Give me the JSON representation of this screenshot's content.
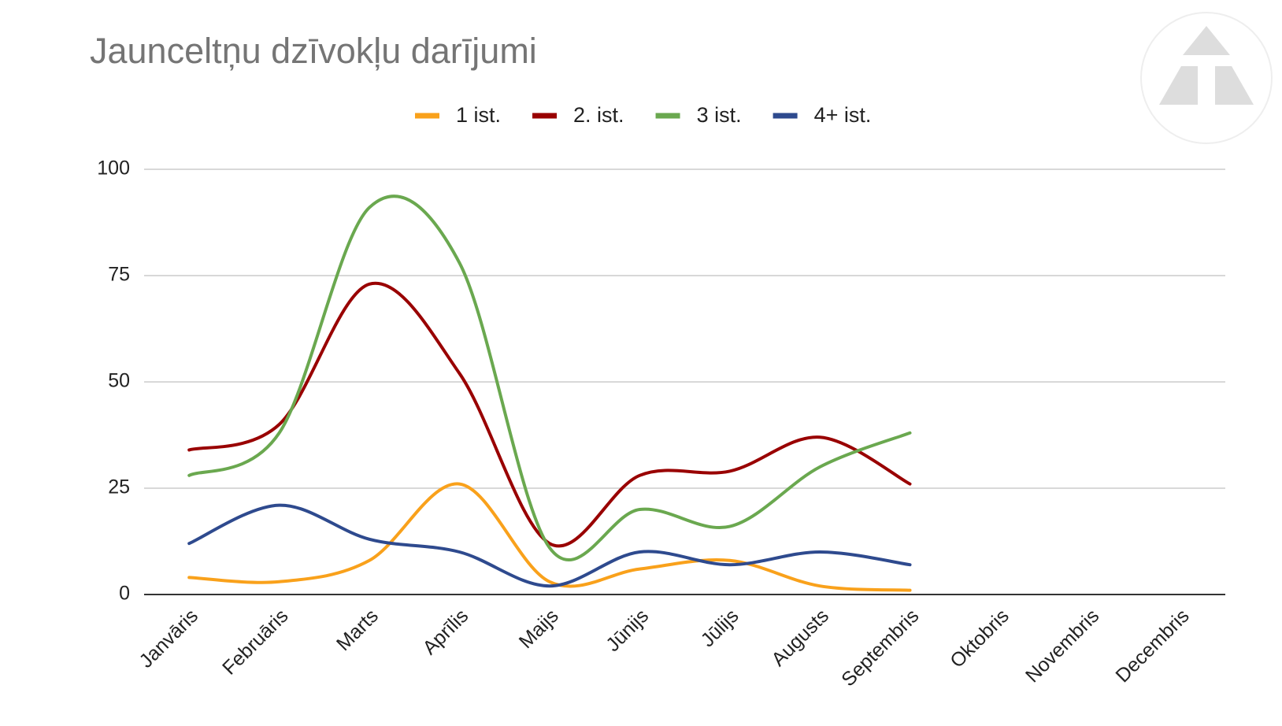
{
  "chart_data": {
    "type": "line",
    "title": "Jaunceltņu dzīvokļu darījumi",
    "categories": [
      "Janvāris",
      "Februāris",
      "Marts",
      "Aprīlis",
      "Maijs",
      "Jūnijs",
      "Jūlijs",
      "Augusts",
      "Septembris",
      "Oktobris",
      "Novembris",
      "Decembris"
    ],
    "series": [
      {
        "name": "1 ist.",
        "color": "#f9a11b",
        "values": [
          4,
          3,
          8,
          26,
          3,
          6,
          8,
          2,
          1,
          null,
          null,
          null
        ]
      },
      {
        "name": "2. ist.",
        "color": "#990000",
        "values": [
          34,
          40,
          73,
          52,
          12,
          28,
          29,
          37,
          26,
          null,
          null,
          null
        ]
      },
      {
        "name": "3 ist.",
        "color": "#6aa84f",
        "values": [
          28,
          38,
          91,
          78,
          11,
          20,
          16,
          30,
          38,
          null,
          null,
          null
        ]
      },
      {
        "name": "4+ ist.",
        "color": "#2e4a8e",
        "values": [
          12,
          21,
          13,
          10,
          2,
          10,
          7,
          10,
          7,
          null,
          null,
          null
        ]
      }
    ],
    "ylim": [
      0,
      100
    ],
    "yticks": [
      0,
      25,
      50,
      75,
      100
    ],
    "grid": true,
    "legend": "top"
  }
}
